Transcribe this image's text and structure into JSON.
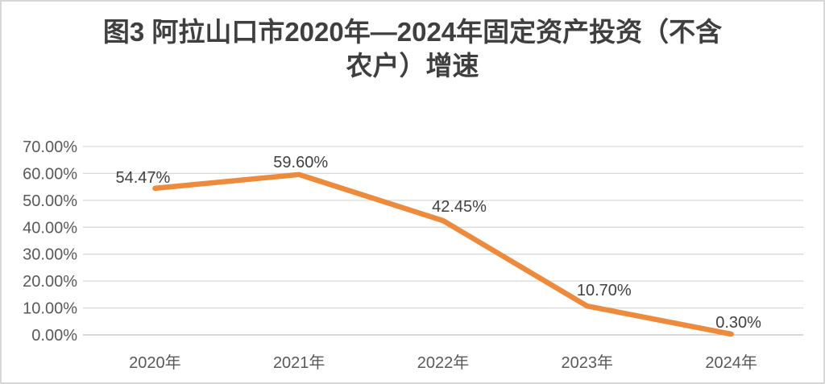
{
  "title": {
    "line1": "图3 阿拉山口市2020年—2024年固定资产投资（不含",
    "line2": "农户）增速"
  },
  "chart_data": {
    "type": "line",
    "title": "图3 阿拉山口市2020年—2024年固定资产投资（不含农户）增速",
    "categories": [
      "2020年",
      "2021年",
      "2022年",
      "2023年",
      "2024年"
    ],
    "series": [
      {
        "name": "固定资产投资（不含农户）增速",
        "values": [
          54.47,
          59.6,
          42.45,
          10.7,
          0.3
        ]
      }
    ],
    "data_labels": [
      "54.47%",
      "59.60%",
      "42.45%",
      "10.70%",
      "0.30%"
    ],
    "y_ticks": [
      0,
      10,
      20,
      30,
      40,
      50,
      60,
      70
    ],
    "y_tick_labels": [
      "0.00%",
      "10.00%",
      "20.00%",
      "30.00%",
      "40.00%",
      "50.00%",
      "60.00%",
      "70.00%"
    ],
    "ylim": [
      0,
      70
    ],
    "xlabel": "",
    "ylabel": "",
    "grid": true,
    "legend": "none",
    "colors": {
      "line": "#ED8A3C",
      "axis_text": "#595959",
      "data_label_text": "#404040",
      "gridline": "#D9D9D9",
      "axis_line": "#BFBFBF",
      "title_text": "#3F3F3F",
      "background": "#FFFFFF",
      "border": "#D7D7D7"
    }
  }
}
